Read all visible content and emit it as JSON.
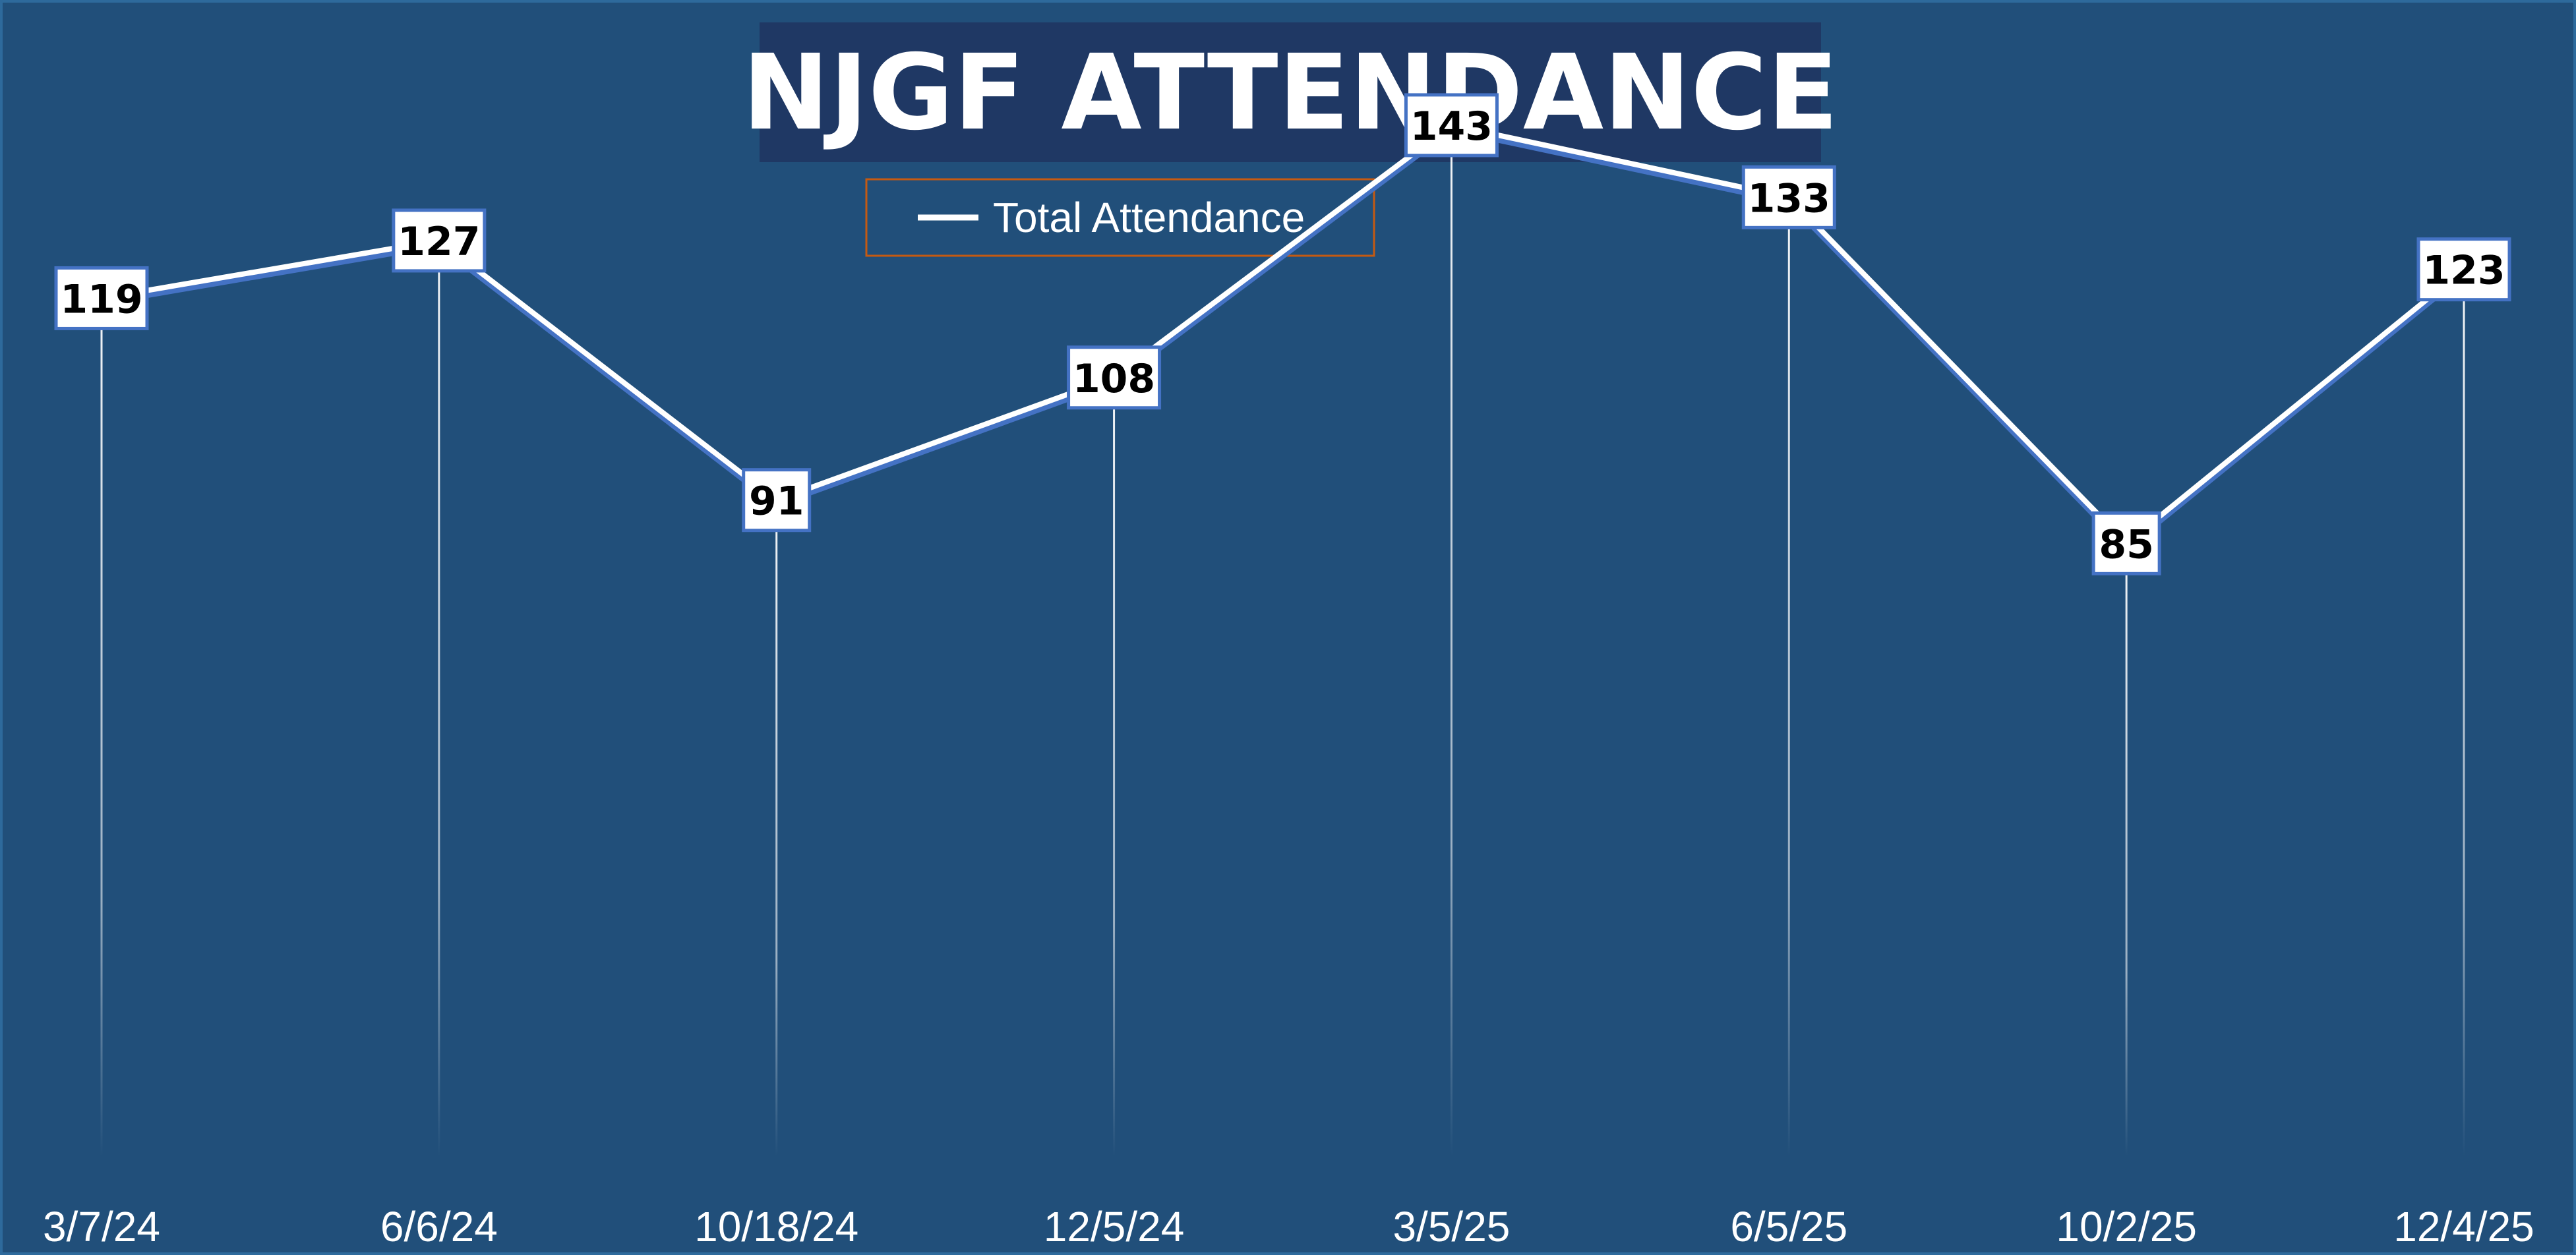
{
  "chart_data": {
    "type": "line",
    "title": "NJGF ATTENDANCE",
    "categories": [
      "3/7/24",
      "6/6/24",
      "10/18/24",
      "12/5/24",
      "3/5/25",
      "6/5/25",
      "10/2/25",
      "12/4/25"
    ],
    "series": [
      {
        "name": "Total Attendance",
        "values": [
          119,
          127,
          91,
          108,
          143,
          133,
          85,
          123
        ]
      }
    ],
    "xlabel": "",
    "ylabel": "",
    "ylim": [
      0,
      160
    ],
    "grid": false,
    "drop_lines": true,
    "data_labels": true,
    "legend_position": "top",
    "colors": {
      "background": "#214f7a",
      "title_band": "#1f3864",
      "line": "#ffffff",
      "line_shadow": "#4472c4",
      "label_border": "#4472c4",
      "legend_border": "#c55a11",
      "text": "#ffffff"
    }
  }
}
